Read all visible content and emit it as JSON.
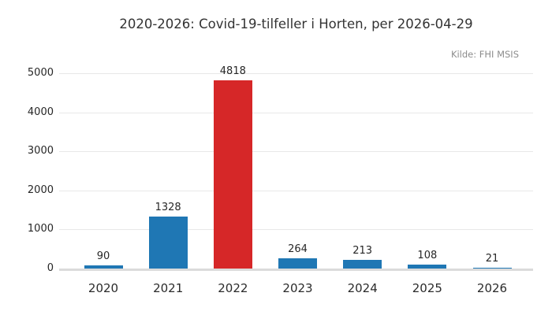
{
  "chart_data": {
    "type": "bar",
    "title": "2020-2026: Covid-19-tilfeller i Horten, per 2026-04-29",
    "source": "Kilde: FHI MSIS",
    "xlabel": "",
    "ylabel": "",
    "categories": [
      "2020",
      "2021",
      "2022",
      "2023",
      "2024",
      "2025",
      "2026"
    ],
    "values": [
      90,
      1328,
      4818,
      264,
      213,
      108,
      21
    ],
    "bar_colors": [
      "#1f77b4",
      "#1f77b4",
      "#d62728",
      "#1f77b4",
      "#1f77b4",
      "#1f77b4",
      "#1f77b4"
    ],
    "ylim": [
      0,
      5000
    ],
    "yticks": [
      0,
      1000,
      2000,
      3000,
      4000,
      5000
    ],
    "grid": "horizontal",
    "legend": "none",
    "colors": {
      "default_bar": "#1f77b4",
      "highlight_bar": "#d62728",
      "gridline": "#e8e8e8",
      "axis_line": "#dbdbdb",
      "title_text": "#333333",
      "tick_text": "#262626",
      "source_text": "#8c8c8c",
      "background": "#ffffff"
    }
  }
}
